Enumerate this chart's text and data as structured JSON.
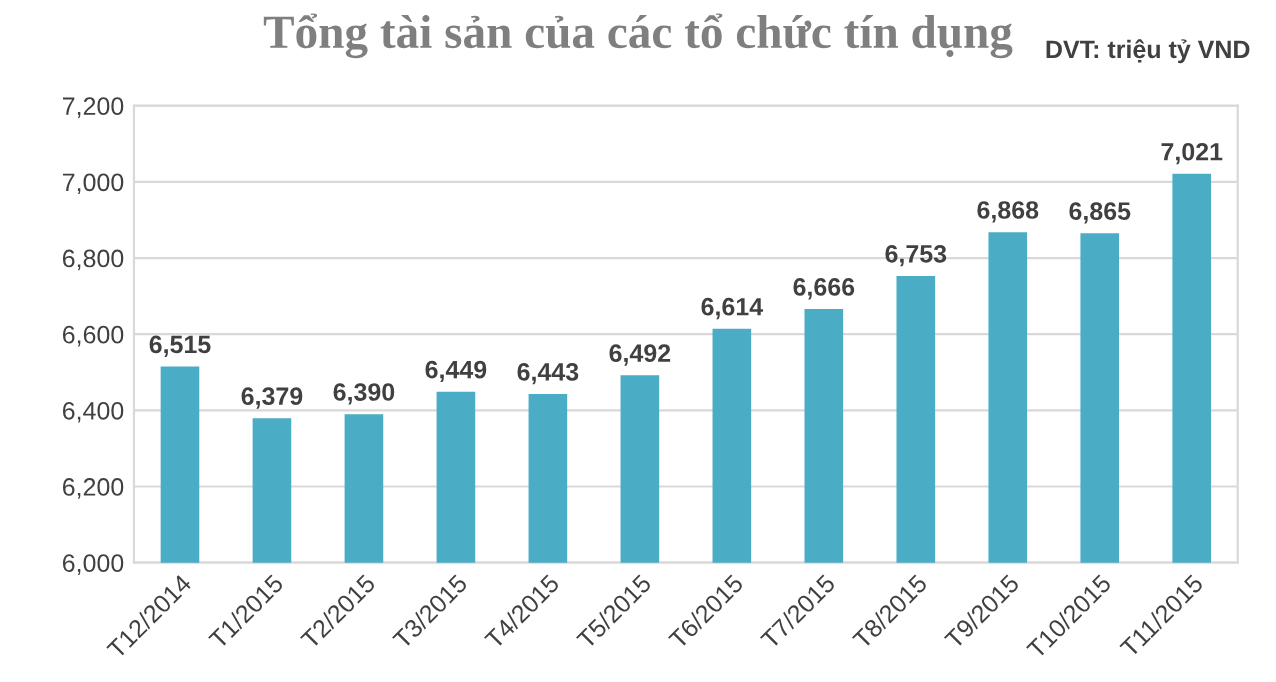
{
  "chart_data": {
    "type": "bar",
    "title": "Tổng tài sản của các tổ chức tín dụng",
    "annotations": [
      "DVT: triệu tỷ VND"
    ],
    "categories": [
      "T12/2014",
      "T1/2015",
      "T2/2015",
      "T3/2015",
      "T4/2015",
      "T5/2015",
      "T6/2015",
      "T7/2015",
      "T8/2015",
      "T9/2015",
      "T10/2015",
      "T11/2015"
    ],
    "values": [
      6515,
      6379,
      6390,
      6449,
      6443,
      6492,
      6614,
      6666,
      6753,
      6868,
      6865,
      7021
    ],
    "value_labels": [
      "6,515",
      "6,379",
      "6,390",
      "6,449",
      "6,443",
      "6,492",
      "6,614",
      "6,666",
      "6,753",
      "6,868",
      "6,865",
      "7,021"
    ],
    "color": "#4bacc6",
    "ylim": [
      6000,
      7200
    ],
    "yticks": [
      {
        "value": 6000,
        "label": "6,000"
      },
      {
        "value": 6200,
        "label": "6,200"
      },
      {
        "value": 6400,
        "label": "6,400"
      },
      {
        "value": 6600,
        "label": "6,600"
      },
      {
        "value": 6800,
        "label": "6,800"
      },
      {
        "value": 7000,
        "label": "7,000"
      },
      {
        "value": 7200,
        "label": "7,200"
      }
    ],
    "grid": "y"
  }
}
